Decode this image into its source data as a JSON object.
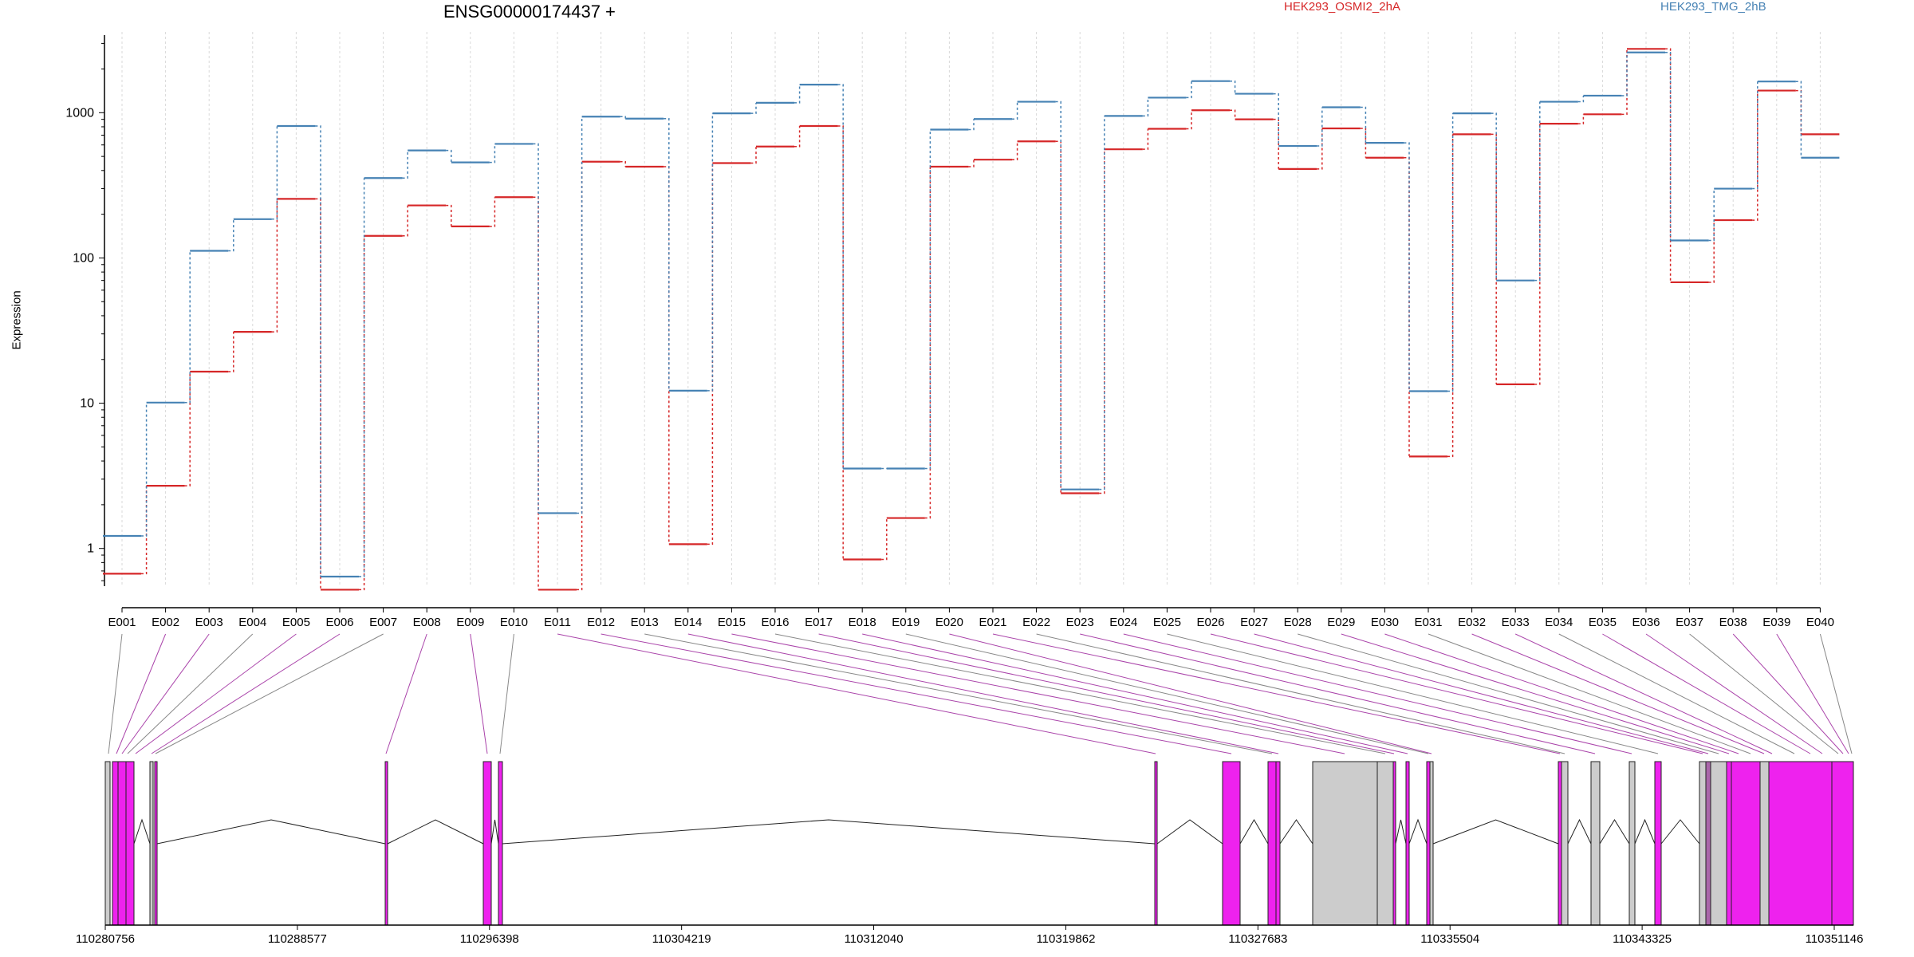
{
  "title": "ENSG00000174437 +",
  "chart_data": {
    "type": "line",
    "ylabel": "Expression",
    "y_scale": "log",
    "ylim": [
      0.55,
      3600
    ],
    "yticks": [
      "1",
      "10",
      "100",
      "1000"
    ],
    "categories": [
      "E001",
      "E002",
      "E003",
      "E004",
      "E005",
      "E006",
      "E007",
      "E008",
      "E009",
      "E010",
      "E011",
      "E012",
      "E013",
      "E014",
      "E015",
      "E016",
      "E017",
      "E018",
      "E019",
      "E020",
      "E021",
      "E022",
      "E023",
      "E024",
      "E025",
      "E026",
      "E027",
      "E028",
      "E029",
      "E030",
      "E031",
      "E032",
      "E033",
      "E034",
      "E035",
      "E036",
      "E037",
      "E038",
      "E039",
      "E040"
    ],
    "series": [
      {
        "name": "HEK293_OSMI2_2hA",
        "color": "#d62728",
        "values": [
          0.67,
          2.7,
          16.5,
          31,
          255,
          0.52,
          142,
          230,
          165,
          262,
          0.52,
          460,
          425,
          1.07,
          450,
          585,
          810,
          0.84,
          1.62,
          425,
          475,
          635,
          2.4,
          560,
          775,
          1040,
          900,
          410,
          780,
          490,
          4.3,
          710,
          13.5,
          840,
          975,
          2750,
          68,
          182,
          1420,
          710
        ]
      },
      {
        "name": "HEK293_TMG_2hB",
        "color": "#4682b4",
        "values": [
          1.22,
          10.1,
          112,
          185,
          810,
          0.64,
          355,
          550,
          455,
          610,
          1.75,
          940,
          910,
          12.2,
          990,
          1170,
          1560,
          3.55,
          3.55,
          765,
          905,
          1190,
          2.55,
          950,
          1270,
          1650,
          1350,
          590,
          1090,
          620,
          12.1,
          990,
          70,
          1190,
          1310,
          2600,
          132,
          300,
          1640,
          490
        ]
      }
    ],
    "genome_ticks": [
      "110280756",
      "110288577",
      "110296398",
      "110304219",
      "110312040",
      "110319862",
      "110327683",
      "110335504",
      "110343325",
      "110351146"
    ]
  }
}
